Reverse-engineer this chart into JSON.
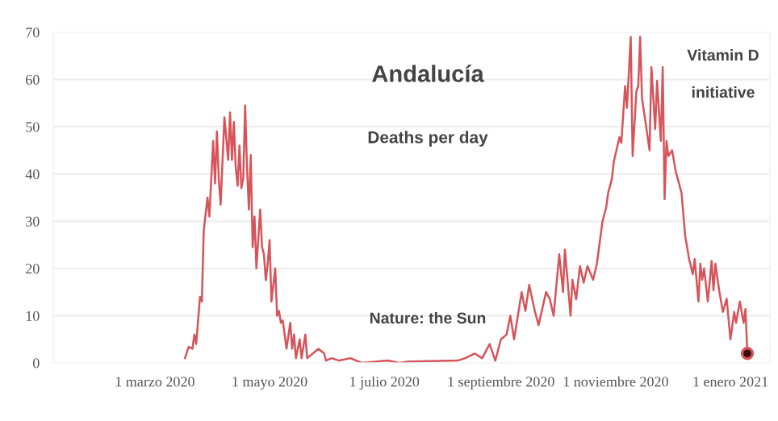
{
  "chart_data": {
    "type": "line",
    "title": "Andalucía",
    "subtitle": "Deaths per day",
    "annotations": [
      "Nature: the Sun",
      "Vitamin D",
      "initiative"
    ],
    "series": [
      {
        "color": "#d6545a",
        "x": [
          "2020-03-17",
          "2020-03-19",
          "2020-03-21",
          "2020-03-22",
          "2020-03-23",
          "2020-03-25",
          "2020-03-26",
          "2020-03-27",
          "2020-03-29",
          "2020-03-30",
          "2020-04-01",
          "2020-04-02",
          "2020-04-03",
          "2020-04-04",
          "2020-04-05",
          "2020-04-06",
          "2020-04-07",
          "2020-04-09",
          "2020-04-10",
          "2020-04-11",
          "2020-04-12",
          "2020-04-13",
          "2020-04-14",
          "2020-04-15",
          "2020-04-16",
          "2020-04-17",
          "2020-04-18",
          "2020-04-19",
          "2020-04-20",
          "2020-04-21",
          "2020-04-22",
          "2020-04-23",
          "2020-04-24",
          "2020-04-26",
          "2020-04-27",
          "2020-04-28",
          "2020-04-29",
          "2020-04-30",
          "2020-05-01",
          "2020-05-02",
          "2020-05-04",
          "2020-05-05",
          "2020-05-06",
          "2020-05-07",
          "2020-05-08",
          "2020-05-10",
          "2020-05-12",
          "2020-05-13",
          "2020-05-14",
          "2020-05-15",
          "2020-05-17",
          "2020-05-18",
          "2020-05-20",
          "2020-05-21",
          "2020-05-24",
          "2020-05-27",
          "2020-05-30",
          "2020-05-31",
          "2020-06-03",
          "2020-06-07",
          "2020-06-13",
          "2020-06-19",
          "2020-07-03",
          "2020-07-09",
          "2020-07-14",
          "2020-08-09",
          "2020-08-13",
          "2020-08-18",
          "2020-08-22",
          "2020-08-26",
          "2020-08-29",
          "2020-09-01",
          "2020-09-04",
          "2020-09-06",
          "2020-09-08",
          "2020-09-10",
          "2020-09-12",
          "2020-09-14",
          "2020-09-16",
          "2020-09-19",
          "2020-09-21",
          "2020-09-25",
          "2020-09-27",
          "2020-09-29",
          "2020-10-02",
          "2020-10-04",
          "2020-10-05",
          "2020-10-08",
          "2020-10-09",
          "2020-10-11",
          "2020-10-13",
          "2020-10-15",
          "2020-10-17",
          "2020-10-20",
          "2020-10-22",
          "2020-10-25",
          "2020-10-27",
          "2020-10-28",
          "2020-10-30",
          "2020-10-31",
          "2020-11-03",
          "2020-11-04",
          "2020-11-06",
          "2020-11-07",
          "2020-11-09",
          "2020-11-10",
          "2020-11-12",
          "2020-11-13",
          "2020-11-14",
          "2020-11-15",
          "2020-11-17",
          "2020-11-19",
          "2020-11-20",
          "2020-11-22",
          "2020-11-23",
          "2020-11-25",
          "2020-11-26",
          "2020-11-27",
          "2020-11-28",
          "2020-11-29",
          "2020-12-01",
          "2020-12-03",
          "2020-12-04",
          "2020-12-06",
          "2020-12-08",
          "2020-12-09",
          "2020-12-10",
          "2020-12-12",
          "2020-12-13",
          "2020-12-15",
          "2020-12-16",
          "2020-12-17",
          "2020-12-18",
          "2020-12-20",
          "2020-12-22",
          "2020-12-23",
          "2020-12-24",
          "2020-12-26",
          "2020-12-28",
          "2020-12-30",
          "2021-01-01",
          "2021-01-03",
          "2021-01-04",
          "2021-01-06",
          "2021-01-08",
          "2021-01-09",
          "2021-01-10"
        ],
        "values": [
          1,
          3.4,
          3,
          6,
          4,
          14,
          13,
          28,
          35,
          31,
          47,
          38,
          49,
          39,
          33.5,
          43,
          52,
          43,
          53,
          43,
          51,
          41.5,
          37.5,
          46,
          37,
          39,
          54.5,
          41.5,
          32.5,
          44,
          24.5,
          31,
          20,
          32.5,
          24.5,
          23,
          17.5,
          21,
          26,
          13,
          20,
          10,
          11,
          8.5,
          9,
          3,
          8.5,
          3,
          6,
          1,
          5,
          1,
          6,
          1,
          2,
          3,
          2,
          0.5,
          1,
          0.5,
          1,
          0,
          0.5,
          0,
          0.3,
          0.5,
          1,
          2,
          1,
          4,
          0.5,
          5,
          6,
          10,
          5,
          10,
          15,
          11,
          16.5,
          11,
          8,
          15,
          13.5,
          10,
          23,
          15,
          24,
          10,
          17.6,
          13.5,
          20.5,
          17,
          20.5,
          17.6,
          21,
          30,
          33,
          36,
          39,
          42.6,
          47.8,
          46.6,
          58.6,
          54,
          69,
          43.8,
          57.5,
          58.6,
          69,
          56,
          50.6,
          45,
          62.6,
          49.5,
          59.7,
          47,
          62.6,
          34.7,
          47,
          43.8,
          45,
          40.4,
          39,
          36,
          26.7,
          24.5,
          22,
          18.8,
          22,
          13,
          21,
          17.6,
          20,
          13,
          21.6,
          15.4,
          21,
          15.4,
          10.8,
          13.6,
          5,
          10.8,
          8.5,
          13,
          8.5,
          11.4,
          2
        ]
      },
      {
        "type": "scatter",
        "marker": "circle",
        "color": "#3a0c0c",
        "x": [
          "2021-01-10"
        ],
        "values": [
          2
        ]
      }
    ],
    "xlim": [
      "2020-01-07",
      "2021-01-22"
    ],
    "xticks": [
      {
        "value": "2020-03-01",
        "label": "1 marzo 2020"
      },
      {
        "value": "2020-05-01",
        "label": "1 mayo 2020"
      },
      {
        "value": "2020-07-01",
        "label": "1 julio 2020"
      },
      {
        "value": "2020-09-01",
        "label": "1 septiembre 2020"
      },
      {
        "value": "2020-11-01",
        "label": "1 noviembre 2020"
      },
      {
        "value": "2021-01-01",
        "label": "1 enero 2021"
      }
    ],
    "ylim": [
      0,
      70
    ],
    "yticks": [
      0,
      10,
      20,
      30,
      40,
      50,
      60,
      70
    ],
    "grid": "y",
    "marker": "none",
    "line_style": "solid",
    "legend": false
  }
}
